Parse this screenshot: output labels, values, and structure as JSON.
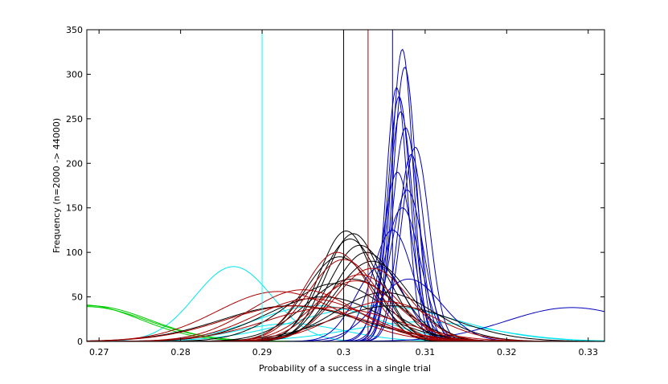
{
  "chart_data": {
    "type": "line",
    "title": "",
    "xlabel": "Probability of a success in a single trial",
    "ylabel": "Frequency (n=2000 -> 44000)",
    "xlim": [
      0.2685,
      0.332
    ],
    "ylim": [
      0,
      350
    ],
    "xticks": [
      0.27,
      0.28,
      0.29,
      0.3,
      0.31,
      0.32,
      0.33
    ],
    "xtick_labels": [
      "0.27",
      "0.28",
      "0.29",
      "0.3",
      "0.31",
      "0.32",
      "0.33"
    ],
    "yticks": [
      0,
      50,
      100,
      150,
      200,
      250,
      300,
      350
    ],
    "ytick_labels": [
      "0",
      "50",
      "100",
      "150",
      "200",
      "250",
      "300",
      "350"
    ],
    "grid": false,
    "box": true,
    "vertical_lines": [
      {
        "x": 0.29,
        "color": "#00ffff"
      },
      {
        "x": 0.3,
        "color": "#000000"
      },
      {
        "x": 0.303,
        "color": "#aa0000"
      },
      {
        "x": 0.306,
        "color": "#0000aa"
      }
    ],
    "series": [
      {
        "color": "#00e5ee",
        "mu": 0.2865,
        "peak": 84,
        "sigma": 0.0047
      },
      {
        "color": "#00e5ee",
        "mu": 0.2968,
        "peak": 40,
        "sigma": 0.0075
      },
      {
        "color": "#00e5ee",
        "mu": 0.3042,
        "peak": 40,
        "sigma": 0.0095
      },
      {
        "color": "#00e5ee",
        "mu": 0.3095,
        "peak": 22,
        "sigma": 0.0085
      },
      {
        "color": "#00e5ee",
        "mu": 0.2935,
        "peak": 20,
        "sigma": 0.0065
      },
      {
        "color": "#00cc00",
        "mu": 0.269,
        "peak": 40,
        "sigma": 0.0072
      },
      {
        "color": "#00cc00",
        "mu": 0.2685,
        "peak": 39,
        "sigma": 0.0074
      },
      {
        "color": "#00cc00",
        "mu": 0.268,
        "peak": 41,
        "sigma": 0.007
      },
      {
        "color": "#0000bb",
        "mu": 0.3072,
        "peak": 328,
        "sigma": 0.0013
      },
      {
        "color": "#0000bb",
        "mu": 0.3075,
        "peak": 308,
        "sigma": 0.0014
      },
      {
        "color": "#0000bb",
        "mu": 0.3065,
        "peak": 285,
        "sigma": 0.0013
      },
      {
        "color": "#0000bb",
        "mu": 0.3068,
        "peak": 275,
        "sigma": 0.0014
      },
      {
        "color": "#0000bb",
        "mu": 0.307,
        "peak": 258,
        "sigma": 0.0015
      },
      {
        "color": "#0000bb",
        "mu": 0.3076,
        "peak": 240,
        "sigma": 0.0016
      },
      {
        "color": "#0000bb",
        "mu": 0.3088,
        "peak": 218,
        "sigma": 0.0017
      },
      {
        "color": "#0000bb",
        "mu": 0.3083,
        "peak": 210,
        "sigma": 0.0016
      },
      {
        "color": "#0000bb",
        "mu": 0.3066,
        "peak": 190,
        "sigma": 0.0018
      },
      {
        "color": "#0000bb",
        "mu": 0.3078,
        "peak": 170,
        "sigma": 0.002
      },
      {
        "color": "#0000bb",
        "mu": 0.3072,
        "peak": 150,
        "sigma": 0.0022
      },
      {
        "color": "#0000bb",
        "mu": 0.306,
        "peak": 125,
        "sigma": 0.0025
      },
      {
        "color": "#0000bb",
        "mu": 0.3045,
        "peak": 84,
        "sigma": 0.003
      },
      {
        "color": "#0000bb",
        "mu": 0.308,
        "peak": 70,
        "sigma": 0.004
      },
      {
        "color": "#0000bb",
        "mu": 0.328,
        "peak": 38,
        "sigma": 0.008
      },
      {
        "color": "#000000",
        "mu": 0.3003,
        "peak": 124,
        "sigma": 0.0033
      },
      {
        "color": "#000000",
        "mu": 0.3012,
        "peak": 121,
        "sigma": 0.0034
      },
      {
        "color": "#000000",
        "mu": 0.3008,
        "peak": 115,
        "sigma": 0.0036
      },
      {
        "color": "#000000",
        "mu": 0.302,
        "peak": 108,
        "sigma": 0.0038
      },
      {
        "color": "#000000",
        "mu": 0.3028,
        "peak": 100,
        "sigma": 0.004
      },
      {
        "color": "#000000",
        "mu": 0.2995,
        "peak": 95,
        "sigma": 0.0042
      },
      {
        "color": "#000000",
        "mu": 0.3035,
        "peak": 90,
        "sigma": 0.0045
      },
      {
        "color": "#000000",
        "mu": 0.301,
        "peak": 70,
        "sigma": 0.0055
      },
      {
        "color": "#000000",
        "mu": 0.299,
        "peak": 65,
        "sigma": 0.006
      },
      {
        "color": "#000000",
        "mu": 0.2935,
        "peak": 40,
        "sigma": 0.0085
      },
      {
        "color": "#000000",
        "mu": 0.306,
        "peak": 40,
        "sigma": 0.0075
      },
      {
        "color": "#000000",
        "mu": 0.2975,
        "peak": 50,
        "sigma": 0.007
      },
      {
        "color": "#000000",
        "mu": 0.305,
        "peak": 55,
        "sigma": 0.006
      },
      {
        "color": "#aa0000",
        "mu": 0.2992,
        "peak": 100,
        "sigma": 0.004
      },
      {
        "color": "#aa0000",
        "mu": 0.3,
        "peak": 92,
        "sigma": 0.0043
      },
      {
        "color": "#aa0000",
        "mu": 0.3035,
        "peak": 82,
        "sigma": 0.0045
      },
      {
        "color": "#aa0000",
        "mu": 0.302,
        "peak": 75,
        "sigma": 0.0047
      },
      {
        "color": "#aa0000",
        "mu": 0.3015,
        "peak": 68,
        "sigma": 0.005
      },
      {
        "color": "#aa0000",
        "mu": 0.295,
        "peak": 58,
        "sigma": 0.0065
      },
      {
        "color": "#aa0000",
        "mu": 0.292,
        "peak": 56,
        "sigma": 0.0075
      },
      {
        "color": "#aa0000",
        "mu": 0.296,
        "peak": 48,
        "sigma": 0.0068
      },
      {
        "color": "#aa0000",
        "mu": 0.294,
        "peak": 40,
        "sigma": 0.0085
      },
      {
        "color": "#aa0000",
        "mu": 0.305,
        "peak": 45,
        "sigma": 0.006
      },
      {
        "color": "#aa0000",
        "mu": 0.2985,
        "peak": 38,
        "sigma": 0.008
      }
    ]
  }
}
